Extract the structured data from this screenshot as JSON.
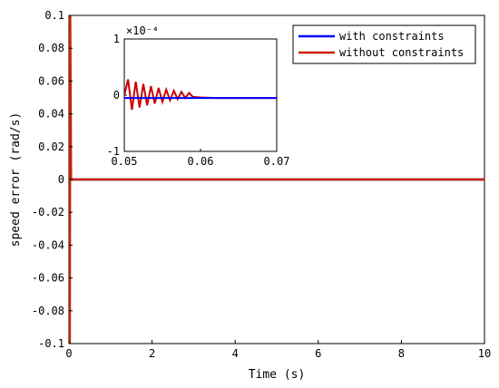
{
  "chart_data": [
    {
      "type": "line",
      "xlabel": "Time (s)",
      "ylabel": "speed error (rad/s)",
      "xlim": [
        0,
        10
      ],
      "ylim": [
        -0.1,
        0.1
      ],
      "x_ticks": [
        "0",
        "2",
        "4",
        "6",
        "8",
        "10"
      ],
      "y_ticks": [
        "-0.1",
        "-0.08",
        "-0.06",
        "-0.04",
        "-0.02",
        "0",
        "0.02",
        "0.04",
        "0.06",
        "0.08",
        "0.1"
      ],
      "grid": false,
      "legend": {
        "placement": "top-right"
      },
      "series": [
        {
          "name": "with constraints",
          "color": "#0000ff",
          "x": [
            0,
            0.05,
            10
          ],
          "y": [
            0,
            0,
            0
          ]
        },
        {
          "name": "without constraints",
          "color": "#cc2200",
          "x": [
            0,
            0.02,
            0.03,
            0.05,
            10
          ],
          "y": [
            0.1,
            -0.1,
            0.1,
            0,
            0
          ]
        }
      ]
    },
    {
      "type": "line",
      "xlim": [
        0.05,
        0.07
      ],
      "ylim": [
        -1,
        1
      ],
      "y_exponent": "×10⁻⁴",
      "x_ticks": [
        "0.05",
        "0.06",
        "0.07"
      ],
      "y_ticks": [
        "-1",
        "0",
        "1"
      ],
      "grid": false,
      "series": [
        {
          "name": "without constraints",
          "color": "#cc0000",
          "x": [
            0.05,
            0.0505,
            0.051,
            0.0515,
            0.052,
            0.0525,
            0.053,
            0.0535,
            0.054,
            0.0545,
            0.055,
            0.0555,
            0.056,
            0.0565,
            0.057,
            0.0575,
            0.058,
            0.0585,
            0.059,
            0.06,
            0.062,
            0.065,
            0.07
          ],
          "y": [
            0,
            0.28,
            -0.26,
            0.24,
            -0.22,
            0.2,
            -0.18,
            0.16,
            -0.15,
            0.13,
            -0.12,
            0.1,
            -0.09,
            0.08,
            -0.07,
            0.06,
            -0.05,
            0.04,
            -0.03,
            -0.04,
            -0.05,
            -0.05,
            -0.05
          ]
        },
        {
          "name": "with constraints",
          "color": "#0000ff",
          "x": [
            0.05,
            0.07
          ],
          "y": [
            -0.05,
            -0.05
          ]
        }
      ]
    }
  ]
}
